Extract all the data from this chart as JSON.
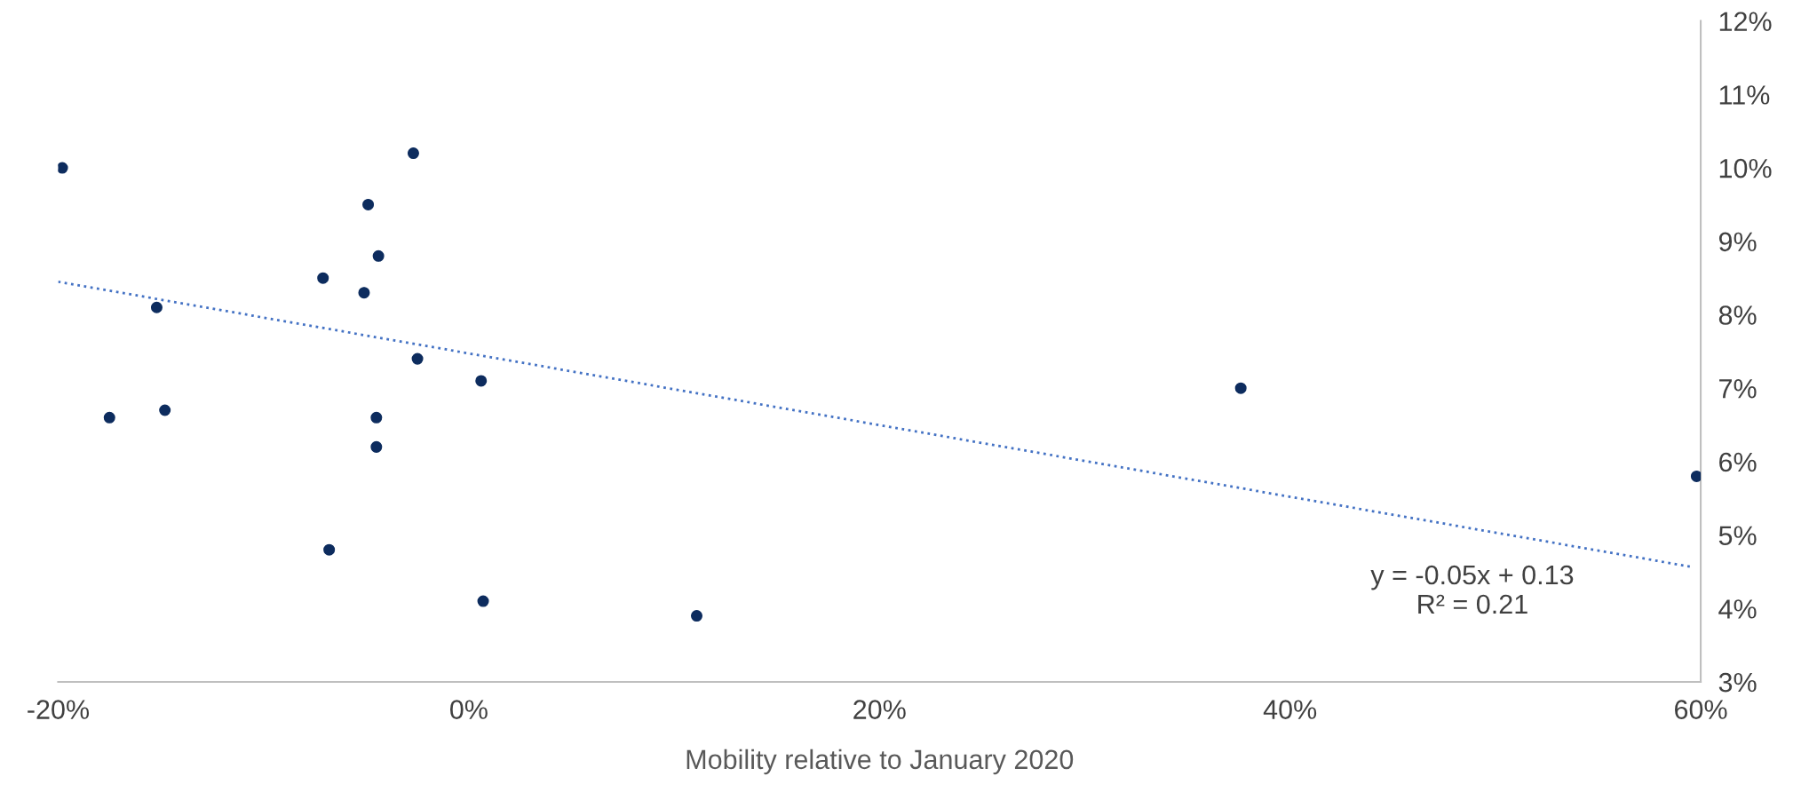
{
  "chart_data": {
    "type": "scatter",
    "xlabel": "Mobility relative to January 2020",
    "xlim": [
      -20,
      60
    ],
    "xticks": [
      {
        "value": -20,
        "label": "-20%"
      },
      {
        "value": 0,
        "label": "0%"
      },
      {
        "value": 20,
        "label": "20%"
      },
      {
        "value": 40,
        "label": "40%"
      },
      {
        "value": 60,
        "label": "60%"
      }
    ],
    "ylim": [
      3,
      12
    ],
    "yticks": [
      {
        "value": 3,
        "label": "3%"
      },
      {
        "value": 4,
        "label": "4%"
      },
      {
        "value": 5,
        "label": "5%"
      },
      {
        "value": 6,
        "label": "6%"
      },
      {
        "value": 7,
        "label": "7%"
      },
      {
        "value": 8,
        "label": "8%"
      },
      {
        "value": 9,
        "label": "9%"
      },
      {
        "value": 10,
        "label": "10%"
      },
      {
        "value": 11,
        "label": "11%"
      },
      {
        "value": 12,
        "label": "12%"
      }
    ],
    "grid": false,
    "legend": false,
    "marker": "circle",
    "series": [
      {
        "color": "#0d2c5e",
        "x": [
          -19.8,
          -2.7,
          -4.9,
          -4.4,
          -7.1,
          -5.1,
          -15.2,
          -2.5,
          0.6,
          37.6,
          -17.5,
          -14.8,
          -4.5,
          -4.5,
          59.8,
          -6.8,
          0.7,
          11.1
        ],
        "values": [
          10.0,
          10.2,
          9.5,
          8.8,
          8.5,
          8.3,
          8.1,
          7.4,
          7.1,
          7.0,
          6.6,
          6.7,
          6.6,
          6.2,
          5.8,
          4.8,
          4.1,
          3.9
        ]
      },
      {
        "type": "line",
        "color": "#4472c4",
        "line_style": "dotted",
        "marker": "none",
        "x": [
          -20,
          59.5
        ],
        "values": [
          8.45,
          4.57
        ]
      }
    ],
    "annotations": [
      "y = -0.05x + 0.13\nR² = 0.21"
    ]
  }
}
